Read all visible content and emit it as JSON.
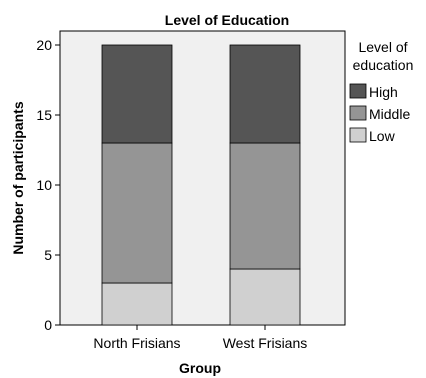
{
  "chart_data": {
    "type": "bar",
    "stacked": true,
    "title": "Level of Education",
    "xlabel": "Group",
    "ylabel": "Number of participants",
    "categories": [
      "North Frisians",
      "West Frisians"
    ],
    "series": [
      {
        "name": "Low",
        "values": [
          3,
          4
        ],
        "color": "#d0d0d0"
      },
      {
        "name": "Middle",
        "values": [
          10,
          9
        ],
        "color": "#959595"
      },
      {
        "name": "High",
        "values": [
          7,
          7
        ],
        "color": "#555555"
      }
    ],
    "ylim": [
      0,
      21
    ],
    "yticks": [
      0,
      5,
      10,
      15,
      20
    ],
    "legend": {
      "title_lines": [
        "Level of",
        "education"
      ],
      "placement": "right",
      "order": [
        "High",
        "Middle",
        "Low"
      ]
    },
    "plot_background": "#f0f0f0",
    "grid": false
  }
}
